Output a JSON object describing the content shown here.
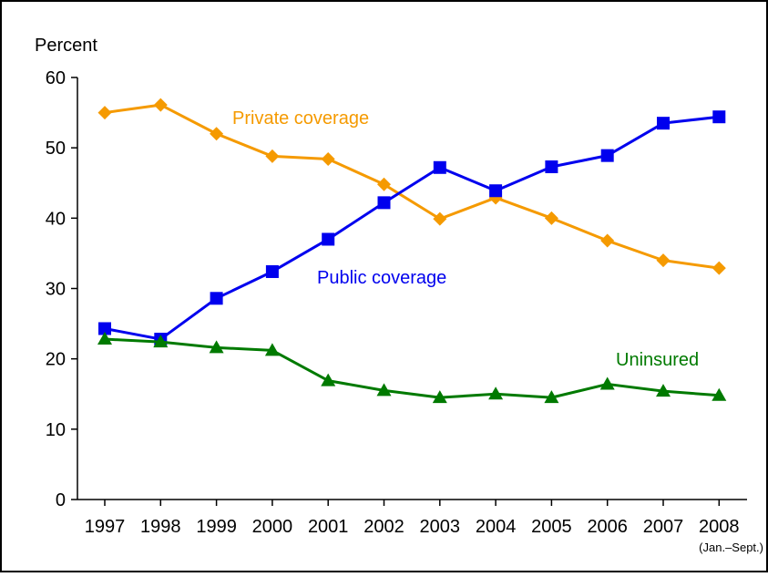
{
  "chart_data": {
    "type": "line",
    "title": "",
    "ylabel": "Percent",
    "xlabel": "",
    "ylim": [
      0,
      60
    ],
    "yticks": [
      0,
      10,
      20,
      30,
      40,
      50,
      60
    ],
    "categories": [
      "1997",
      "1998",
      "1999",
      "2000",
      "2001",
      "2002",
      "2003",
      "2004",
      "2005",
      "2006",
      "2007",
      "2008"
    ],
    "x_note": "(Jan.–Sept.)",
    "grid": false,
    "legend": "inline-labels",
    "series": [
      {
        "name": "Private coverage",
        "color": "#f59a00",
        "marker": "diamond",
        "values": [
          55.0,
          56.1,
          52.0,
          48.8,
          48.4,
          44.8,
          39.9,
          42.9,
          40.0,
          36.8,
          34.0,
          32.9
        ]
      },
      {
        "name": "Public coverage",
        "color": "#0000ee",
        "marker": "square",
        "values": [
          24.3,
          22.8,
          28.6,
          32.4,
          37.0,
          42.2,
          47.2,
          43.9,
          47.3,
          48.9,
          53.5,
          54.4
        ]
      },
      {
        "name": "Uninsured",
        "color": "#007a00",
        "marker": "triangle",
        "values": [
          22.8,
          22.4,
          21.6,
          21.2,
          16.9,
          15.5,
          14.5,
          15.0,
          14.5,
          16.4,
          15.4,
          14.8
        ]
      }
    ]
  }
}
